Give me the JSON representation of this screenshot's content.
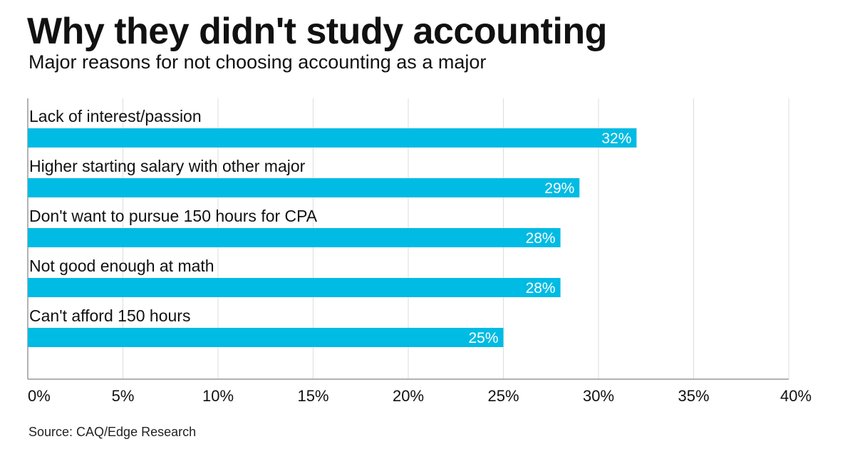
{
  "header": {
    "title": "Why they didn't study accounting",
    "subtitle": "Major reasons for not choosing accounting as a major"
  },
  "footer": {
    "source": "Source: CAQ/Edge Research"
  },
  "chart_data": {
    "type": "bar",
    "orientation": "horizontal",
    "title": "Why they didn't study accounting",
    "subtitle": "Major reasons for not choosing accounting as a major",
    "categories": [
      "Lack of interest/passion",
      "Higher starting salary with other major",
      "Don't want to pursue 150 hours for CPA",
      "Not good enough at math",
      "Can't afford 150 hours"
    ],
    "values": [
      32,
      29,
      28,
      28,
      25
    ],
    "value_labels": [
      "32%",
      "29%",
      "28%",
      "28%",
      "25%"
    ],
    "xlim": [
      0,
      40
    ],
    "xticks": [
      0,
      5,
      10,
      15,
      20,
      25,
      30,
      35,
      40
    ],
    "xtick_labels": [
      "0%",
      "5%",
      "10%",
      "15%",
      "20%",
      "25%",
      "30%",
      "35%",
      "40%"
    ],
    "xlabel": "",
    "ylabel": "",
    "grid": true,
    "legend": "none",
    "colors": {
      "bar": "#00bbe3",
      "grid": "#dddddd",
      "axis": "#999999"
    }
  }
}
